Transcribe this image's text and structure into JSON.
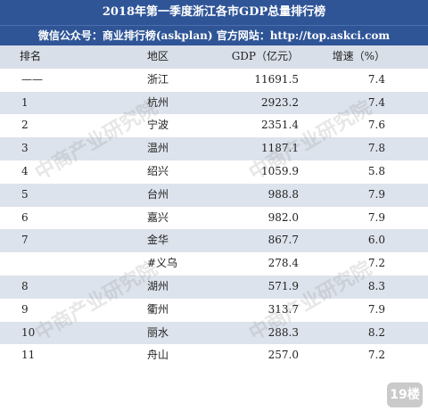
{
  "title": "2018年第一季度浙江各市GDP总量排行榜",
  "subtitle": "微信公众号：商业排行榜(askplan) 官方网站：http://top.askci.com",
  "table": {
    "headers": {
      "rank": "排名",
      "region": "地区",
      "gdp": "GDP（亿元）",
      "growth": "增速（%）"
    },
    "rows": [
      {
        "rank": "——",
        "region": "浙江",
        "gdp": "11691.5",
        "growth": "7.4"
      },
      {
        "rank": "1",
        "region": "杭州",
        "gdp": "2923.2",
        "growth": "7.4"
      },
      {
        "rank": "2",
        "region": "宁波",
        "gdp": "2351.4",
        "growth": "7.6"
      },
      {
        "rank": "3",
        "region": "温州",
        "gdp": "1187.1",
        "growth": "7.8"
      },
      {
        "rank": "4",
        "region": "绍兴",
        "gdp": "1059.9",
        "growth": "5.8"
      },
      {
        "rank": "5",
        "region": "台州",
        "gdp": "988.8",
        "growth": "7.9"
      },
      {
        "rank": "6",
        "region": "嘉兴",
        "gdp": "982.0",
        "growth": "7.9"
      },
      {
        "rank": "7",
        "region": "金华",
        "gdp": "867.7",
        "growth": "6.0"
      },
      {
        "rank": "",
        "region": "#义乌",
        "gdp": "278.4",
        "growth": "7.2"
      },
      {
        "rank": "8",
        "region": "湖州",
        "gdp": "571.9",
        "growth": "8.3"
      },
      {
        "rank": "9",
        "region": "衢州",
        "gdp": "313.7",
        "growth": "7.9"
      },
      {
        "rank": "10",
        "region": "丽水",
        "gdp": "288.3",
        "growth": "8.2"
      },
      {
        "rank": "11",
        "region": "舟山",
        "gdp": "257.0",
        "growth": "7.2"
      }
    ]
  },
  "watermark": "中商产业研究院",
  "badge": "19楼",
  "colors": {
    "header_bg": "#2f5597",
    "stripe": "#dde3ec"
  }
}
